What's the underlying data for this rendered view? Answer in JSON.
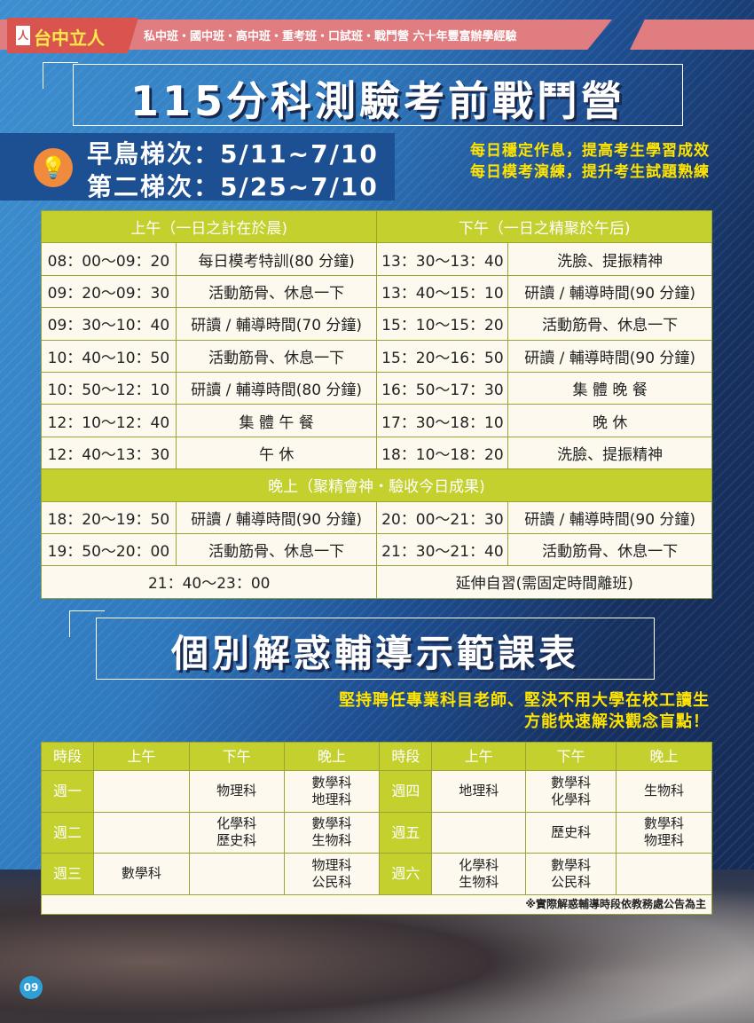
{
  "header": {
    "logo": "台中立人",
    "tagline": "私中班・國中班・高中班・重考班・口試班・戰鬥營 六十年豐富辦學經驗"
  },
  "title1": "115分科測驗考前戰鬥營",
  "dates": {
    "early": "早鳥梯次：5/11~7/10",
    "second": "第二梯次：5/25~7/10",
    "icon": "lightbulb-icon"
  },
  "slogans": [
    "每日穩定作息，提高考生學習成效",
    "每日模考演練，提升考生試題熟練"
  ],
  "schedule": {
    "morning_header": "上午（一日之計在於晨)",
    "afternoon_header": "下午（一日之精聚於午后)",
    "evening_header": "晚上（聚精會神・驗收今日成果)",
    "day_rows": [
      [
        "08：00～09：20",
        "每日模考特訓(80 分鐘)",
        "13：30～13：40",
        "洗臉、提振精神"
      ],
      [
        "09：20～09：30",
        "活動筋骨、休息一下",
        "13：40～15：10",
        "研讀 / 輔導時間(90 分鐘)"
      ],
      [
        "09：30～10：40",
        "研讀 / 輔導時間(70 分鐘)",
        "15：10～15：20",
        "活動筋骨、休息一下"
      ],
      [
        "10：40～10：50",
        "活動筋骨、休息一下",
        "15：20～16：50",
        "研讀 / 輔導時間(90 分鐘)"
      ],
      [
        "10：50～12：10",
        "研讀 / 輔導時間(80 分鐘)",
        "16：50～17：30",
        "集 體 晚 餐"
      ],
      [
        "12：10～12：40",
        "集 體 午 餐",
        "17：30～18：10",
        "晚 休"
      ],
      [
        "12：40～13：30",
        "午 休",
        "18：10～18：20",
        "洗臉、提振精神"
      ]
    ],
    "evening_rows": [
      [
        "18：20～19：50",
        "研讀 / 輔導時間(90 分鐘)",
        "20：00～21：30",
        "研讀 / 輔導時間(90 分鐘)"
      ],
      [
        "19：50～20：00",
        "活動筋骨、休息一下",
        "21：30～21：40",
        "活動筋骨、休息一下"
      ]
    ],
    "last_row": [
      "21：40～23：00",
      "延伸自習(需固定時間離班)"
    ]
  },
  "title2": "個別解惑輔導示範課表",
  "subtitle2": [
    "堅持聘任專業科目老師、堅決不用大學在校工讀生",
    "方能快速解決觀念盲點！"
  ],
  "tutoring": {
    "headers": [
      "時段",
      "上午",
      "下午",
      "晚上",
      "時段",
      "上午",
      "下午",
      "晚上"
    ],
    "rows": [
      [
        "週一",
        "",
        "物理科",
        "數學科\n地理科",
        "週四",
        "地理科",
        "數學科\n化學科",
        "生物科"
      ],
      [
        "週二",
        "",
        "化學科\n歷史科",
        "數學科\n生物科",
        "週五",
        "",
        "歷史科",
        "數學科\n物理科"
      ],
      [
        "週三",
        "數學科",
        "",
        "物理科\n公民科",
        "週六",
        "化學科\n生物科",
        "數學科\n公民科",
        ""
      ]
    ],
    "note": "※實際解惑輔導時段依教務處公告為主"
  },
  "page_number": "09",
  "colors": {
    "green": "#c3d02e",
    "cell": "#fdf9ef",
    "yellow": "#ffe400",
    "pink": "#e07d80"
  }
}
